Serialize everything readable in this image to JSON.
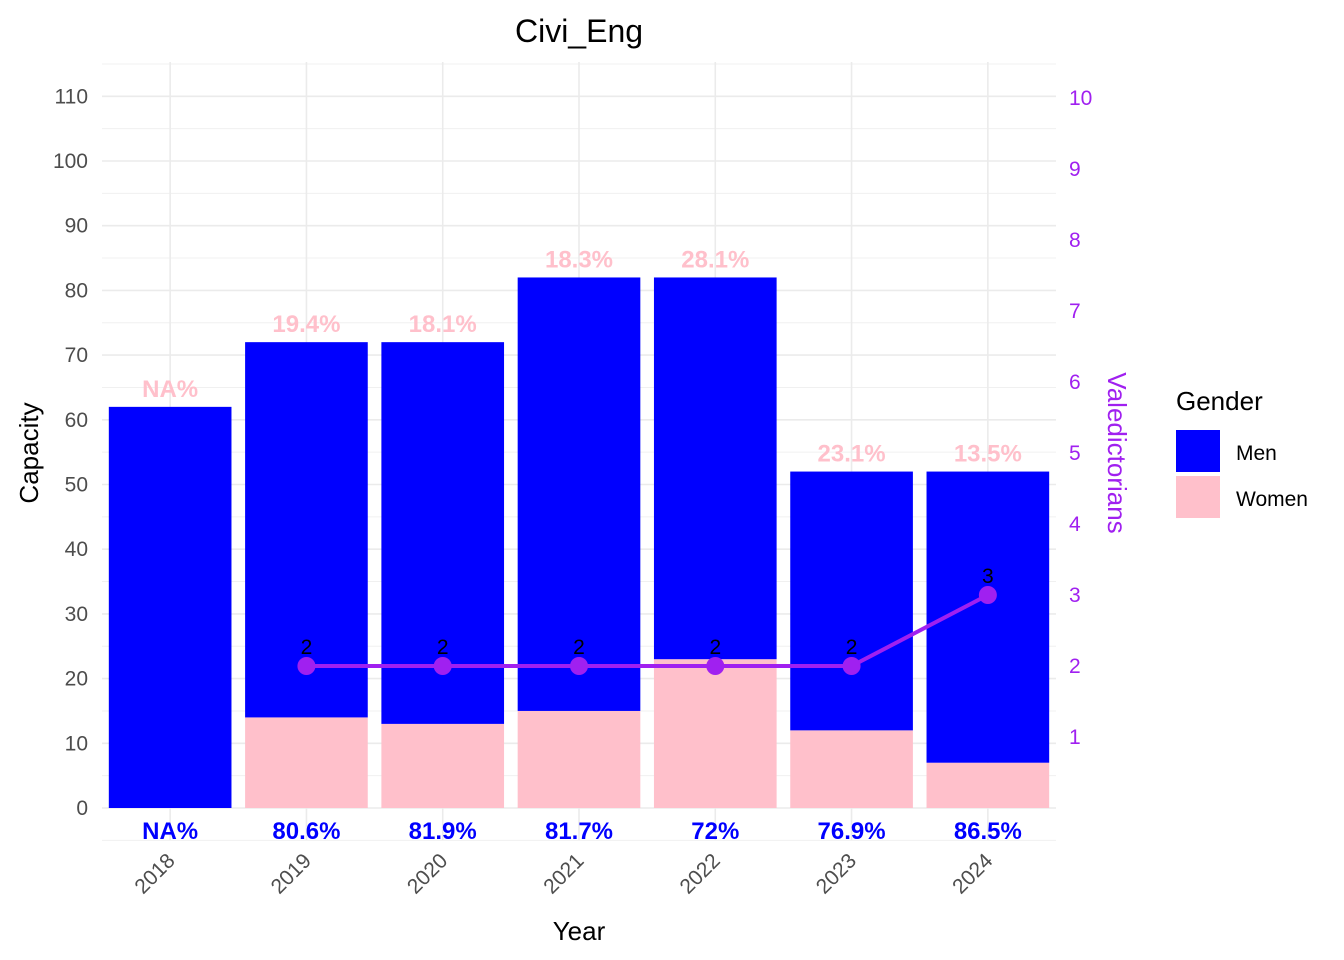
{
  "chart_data": {
    "type": "bar",
    "title": "Civi_Eng",
    "xlabel": "Year",
    "ylabel": "Capacity",
    "y2label": "Valedictorians",
    "categories": [
      "2018",
      "2019",
      "2020",
      "2021",
      "2022",
      "2023",
      "2024"
    ],
    "ylim": [
      0,
      115
    ],
    "y_ticks": [
      0,
      10,
      20,
      30,
      40,
      50,
      60,
      70,
      80,
      90,
      100,
      110
    ],
    "y2lim": [
      0,
      10.5
    ],
    "y2_ticks": [
      1,
      2,
      3,
      4,
      5,
      6,
      7,
      8,
      9,
      10
    ],
    "stacked": true,
    "grid": true,
    "legend": {
      "title": "Gender",
      "position": "right"
    },
    "series": [
      {
        "name": "Men",
        "color": "#0000ff",
        "values": [
          62,
          58,
          59,
          67,
          59,
          40,
          45
        ]
      },
      {
        "name": "Women",
        "color": "#ffc0cb",
        "values": [
          0,
          14,
          13,
          15,
          23,
          12,
          7
        ]
      }
    ],
    "totals": [
      62,
      72,
      72,
      82,
      82,
      52,
      52
    ],
    "top_labels": [
      "NA%",
      "19.4%",
      "18.1%",
      "18.3%",
      "28.1%",
      "23.1%",
      "13.5%"
    ],
    "top_label_color": "#ffc0cb",
    "bottom_labels": [
      "NA%",
      "80.6%",
      "81.9%",
      "81.7%",
      "72%",
      "76.9%",
      "86.5%"
    ],
    "bottom_label_color": "#0000ff",
    "line_series": {
      "name": "Valedictorians",
      "color": "#a020f0",
      "x": [
        "2019",
        "2020",
        "2021",
        "2022",
        "2023",
        "2024"
      ],
      "values": [
        2,
        2,
        2,
        2,
        2,
        3
      ],
      "labels": [
        "2",
        "2",
        "2",
        "2",
        "2",
        "3"
      ]
    }
  }
}
